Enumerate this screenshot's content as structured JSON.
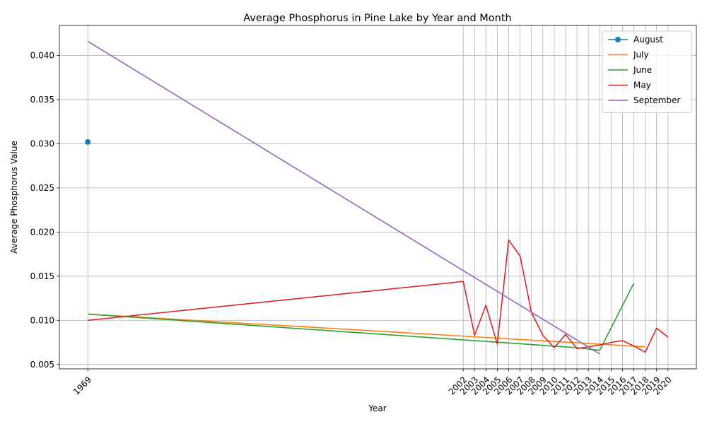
{
  "chart_data": {
    "type": "line",
    "title": "Average Phosphorus in Pine Lake by Year and Month",
    "xlabel": "Year",
    "ylabel": "Average Phosphorus Value",
    "xlim": [
      1966.5,
      2022.5
    ],
    "ylim": [
      0.0045,
      0.0434
    ],
    "x_ticks": [
      1969,
      2002,
      2003,
      2004,
      2005,
      2006,
      2007,
      2008,
      2009,
      2010,
      2011,
      2012,
      2013,
      2014,
      2015,
      2016,
      2017,
      2018,
      2019,
      2020
    ],
    "y_ticks": [
      0.005,
      0.01,
      0.015,
      0.02,
      0.025,
      0.03,
      0.035,
      0.04
    ],
    "y_tick_labels": [
      "0.005",
      "0.010",
      "0.015",
      "0.020",
      "0.025",
      "0.030",
      "0.035",
      "0.040"
    ],
    "grid": true,
    "legend_position": "top-right",
    "series": [
      {
        "name": "August",
        "color": "#1f77b4",
        "marker": "circle",
        "x": [
          1969
        ],
        "y": [
          0.0302
        ]
      },
      {
        "name": "July",
        "color": "#ff7f0e",
        "marker": "none",
        "x": [
          1969,
          2018
        ],
        "y": [
          0.0107,
          0.007
        ]
      },
      {
        "name": "June",
        "color": "#2ca02c",
        "marker": "none",
        "x": [
          1969,
          2012,
          2014,
          2017
        ],
        "y": [
          0.0107,
          0.0069,
          0.0066,
          0.0142
        ]
      },
      {
        "name": "May",
        "color": "#d62728",
        "marker": "none",
        "x": [
          1969,
          2002,
          2003,
          2004,
          2005,
          2006,
          2007,
          2008,
          2009,
          2010,
          2011,
          2012,
          2014,
          2015,
          2016,
          2017,
          2018,
          2019,
          2020
        ],
        "y": [
          0.01,
          0.0144,
          0.0083,
          0.0117,
          0.0073,
          0.0191,
          0.0173,
          0.0109,
          0.0083,
          0.0069,
          0.0084,
          0.0068,
          0.0072,
          0.0075,
          0.0077,
          0.0071,
          0.0064,
          0.0091,
          0.0081
        ]
      },
      {
        "name": "September",
        "color": "#9467bd",
        "marker": "none",
        "x": [
          1969,
          2014
        ],
        "y": [
          0.0416,
          0.0062
        ]
      }
    ]
  }
}
